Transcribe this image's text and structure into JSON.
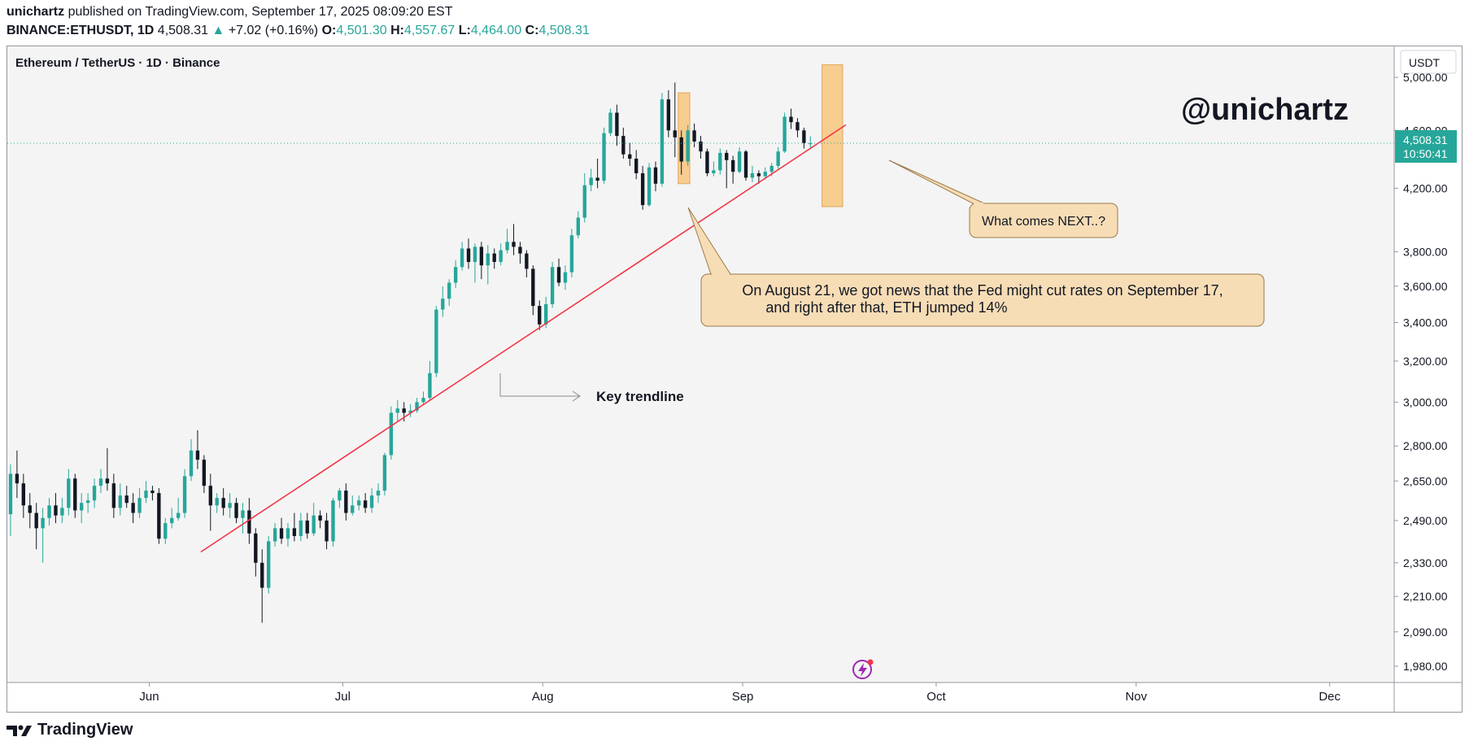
{
  "header": {
    "author": "unichartz",
    "published_text": "published on TradingView.com, September 17, 2025 08:09:20 EST",
    "symbol": "BINANCE:ETHUSDT, 1D",
    "last_price": "4,508.31",
    "change_arrow": "▲",
    "change": "+7.02 (+0.16%)",
    "o_label": "O:",
    "o_value": "4,501.30",
    "h_label": "H:",
    "h_value": "4,557.67",
    "l_label": "L:",
    "l_value": "4,464.00",
    "c_label": "C:",
    "c_value": "4,508.31"
  },
  "footer": {
    "brand": "TradingView"
  },
  "colors": {
    "up": "#26a69a",
    "down": "#131722",
    "trendline": "#f23645",
    "highlight": "#f7c57d",
    "callout_bg": "#f7ddb6",
    "callout_border": "#9b7a4a",
    "price_tag": "#26a69a"
  },
  "chart_data": {
    "type": "candlestick",
    "title": "Ethereum / TetherUS · 1D · Binance",
    "currency_label": "USDT",
    "watermark": "@unichartz",
    "y_scale": "log",
    "ylim": [
      1930,
      5250
    ],
    "y_ticks": [
      5000,
      4600,
      4200,
      3800,
      3600,
      3400,
      3200,
      3000,
      2800,
      2650,
      2490,
      2330,
      2210,
      2090,
      1980
    ],
    "y_tick_labels": [
      "5,000.00",
      "4,600.00",
      "4,200.00",
      "3,800.00",
      "3,600.00",
      "3,400.00",
      "3,200.00",
      "3,000.00",
      "2,800.00",
      "2,650.00",
      "2,490.00",
      "2,330.00",
      "2,210.00",
      "2,090.00",
      "1,980.00"
    ],
    "x_start_date": "2025-05-10",
    "x_range_days": 215,
    "x_tick_days": [
      22,
      52,
      83,
      114,
      144,
      175,
      205
    ],
    "x_tick_labels": [
      "Jun",
      "Jul",
      "Aug",
      "Sep",
      "Oct",
      "Nov",
      "Dec"
    ],
    "current_price": 4508.31,
    "current_price_label": "4,508.31",
    "countdown": "10:50:41",
    "candles": [
      [
        2515,
        2680,
        2720,
        2430
      ],
      [
        2680,
        2640,
        2780,
        2580
      ],
      [
        2640,
        2550,
        2680,
        2500
      ],
      [
        2550,
        2520,
        2600,
        2460
      ],
      [
        2520,
        2460,
        2560,
        2380
      ],
      [
        2460,
        2500,
        2540,
        2330
      ],
      [
        2500,
        2550,
        2580,
        2470
      ],
      [
        2550,
        2510,
        2600,
        2480
      ],
      [
        2510,
        2540,
        2580,
        2480
      ],
      [
        2540,
        2660,
        2700,
        2510
      ],
      [
        2660,
        2530,
        2680,
        2500
      ],
      [
        2530,
        2560,
        2600,
        2480
      ],
      [
        2560,
        2570,
        2600,
        2520
      ],
      [
        2570,
        2630,
        2660,
        2540
      ],
      [
        2630,
        2660,
        2700,
        2600
      ],
      [
        2660,
        2640,
        2790,
        2610
      ],
      [
        2640,
        2540,
        2680,
        2500
      ],
      [
        2540,
        2590,
        2640,
        2510
      ],
      [
        2590,
        2560,
        2630,
        2540
      ],
      [
        2560,
        2520,
        2600,
        2480
      ],
      [
        2520,
        2580,
        2620,
        2500
      ],
      [
        2580,
        2610,
        2650,
        2560
      ],
      [
        2610,
        2600,
        2630,
        2570
      ],
      [
        2600,
        2420,
        2620,
        2400
      ],
      [
        2420,
        2480,
        2500,
        2400
      ],
      [
        2480,
        2500,
        2540,
        2460
      ],
      [
        2500,
        2520,
        2580,
        2490
      ],
      [
        2520,
        2670,
        2700,
        2500
      ],
      [
        2670,
        2780,
        2830,
        2650
      ],
      [
        2780,
        2740,
        2870,
        2700
      ],
      [
        2740,
        2630,
        2760,
        2600
      ],
      [
        2630,
        2550,
        2680,
        2450
      ],
      [
        2550,
        2580,
        2600,
        2520
      ],
      [
        2580,
        2540,
        2620,
        2510
      ],
      [
        2540,
        2560,
        2600,
        2500
      ],
      [
        2560,
        2500,
        2580,
        2480
      ],
      [
        2500,
        2530,
        2560,
        2440
      ],
      [
        2530,
        2440,
        2580,
        2400
      ],
      [
        2440,
        2330,
        2460,
        2280
      ],
      [
        2330,
        2240,
        2380,
        2120
      ],
      [
        2240,
        2410,
        2430,
        2220
      ],
      [
        2410,
        2460,
        2480,
        2390
      ],
      [
        2460,
        2420,
        2500,
        2400
      ],
      [
        2420,
        2460,
        2480,
        2390
      ],
      [
        2460,
        2430,
        2520,
        2410
      ],
      [
        2430,
        2490,
        2520,
        2410
      ],
      [
        2490,
        2440,
        2520,
        2420
      ],
      [
        2440,
        2510,
        2560,
        2430
      ],
      [
        2510,
        2490,
        2530,
        2460
      ],
      [
        2490,
        2410,
        2520,
        2380
      ],
      [
        2410,
        2570,
        2580,
        2390
      ],
      [
        2570,
        2610,
        2620,
        2540
      ],
      [
        2610,
        2520,
        2640,
        2490
      ],
      [
        2520,
        2550,
        2590,
        2510
      ],
      [
        2550,
        2570,
        2590,
        2530
      ],
      [
        2570,
        2540,
        2600,
        2520
      ],
      [
        2540,
        2590,
        2620,
        2520
      ],
      [
        2590,
        2610,
        2640,
        2560
      ],
      [
        2610,
        2760,
        2770,
        2590
      ],
      [
        2760,
        2950,
        2980,
        2740
      ],
      [
        2950,
        2970,
        3010,
        2910
      ],
      [
        2970,
        2950,
        3000,
        2910
      ],
      [
        2950,
        2960,
        2990,
        2930
      ],
      [
        2960,
        3000,
        3020,
        2950
      ],
      [
        3000,
        3020,
        3050,
        2990
      ],
      [
        3020,
        3140,
        3200,
        3010
      ],
      [
        3140,
        3470,
        3490,
        3120
      ],
      [
        3470,
        3530,
        3600,
        3430
      ],
      [
        3530,
        3620,
        3640,
        3490
      ],
      [
        3620,
        3710,
        3750,
        3590
      ],
      [
        3710,
        3820,
        3860,
        3690
      ],
      [
        3820,
        3740,
        3880,
        3700
      ],
      [
        3740,
        3830,
        3850,
        3620
      ],
      [
        3830,
        3720,
        3860,
        3640
      ],
      [
        3720,
        3790,
        3840,
        3610
      ],
      [
        3790,
        3740,
        3820,
        3700
      ],
      [
        3740,
        3810,
        3850,
        3720
      ],
      [
        3810,
        3860,
        3940,
        3790
      ],
      [
        3860,
        3830,
        3970,
        3780
      ],
      [
        3830,
        3790,
        3860,
        3730
      ],
      [
        3790,
        3700,
        3810,
        3650
      ],
      [
        3700,
        3490,
        3720,
        3440
      ],
      [
        3490,
        3390,
        3520,
        3360
      ],
      [
        3390,
        3500,
        3540,
        3370
      ],
      [
        3500,
        3710,
        3740,
        3480
      ],
      [
        3710,
        3620,
        3760,
        3600
      ],
      [
        3620,
        3680,
        3720,
        3580
      ],
      [
        3680,
        3900,
        3940,
        3650
      ],
      [
        3900,
        4010,
        4050,
        3880
      ],
      [
        4010,
        4220,
        4300,
        3980
      ],
      [
        4220,
        4270,
        4330,
        4180
      ],
      [
        4270,
        4250,
        4400,
        4200
      ],
      [
        4250,
        4580,
        4620,
        4230
      ],
      [
        4580,
        4730,
        4760,
        4560
      ],
      [
        4730,
        4560,
        4790,
        4490
      ],
      [
        4560,
        4430,
        4620,
        4400
      ],
      [
        4430,
        4400,
        4510,
        4350
      ],
      [
        4400,
        4300,
        4460,
        4260
      ],
      [
        4300,
        4090,
        4350,
        4060
      ],
      [
        4090,
        4340,
        4370,
        4080
      ],
      [
        4340,
        4230,
        4380,
        4180
      ],
      [
        4230,
        4830,
        4880,
        4210
      ],
      [
        4830,
        4600,
        4900,
        4550
      ],
      [
        4600,
        4550,
        4960,
        4410
      ],
      [
        4550,
        4380,
        4600,
        4290
      ],
      [
        4380,
        4600,
        4640,
        4350
      ],
      [
        4600,
        4520,
        4650,
        4480
      ],
      [
        4520,
        4450,
        4560,
        4400
      ],
      [
        4450,
        4300,
        4470,
        4280
      ],
      [
        4300,
        4320,
        4380,
        4280
      ],
      [
        4320,
        4440,
        4470,
        4290
      ],
      [
        4440,
        4390,
        4460,
        4200
      ],
      [
        4390,
        4310,
        4420,
        4230
      ],
      [
        4310,
        4450,
        4480,
        4300
      ],
      [
        4450,
        4270,
        4460,
        4250
      ],
      [
        4270,
        4300,
        4350,
        4240
      ],
      [
        4300,
        4280,
        4320,
        4230
      ],
      [
        4280,
        4310,
        4340,
        4260
      ],
      [
        4310,
        4350,
        4370,
        4280
      ],
      [
        4350,
        4450,
        4480,
        4330
      ],
      [
        4450,
        4700,
        4730,
        4440
      ],
      [
        4700,
        4660,
        4760,
        4610
      ],
      [
        4660,
        4600,
        4690,
        4550
      ],
      [
        4600,
        4510,
        4620,
        4470
      ],
      [
        4501.3,
        4508.31,
        4557.67,
        4464.0
      ]
    ],
    "trendline": {
      "label": "Key trendline",
      "start_day": 30,
      "start_price": 2370,
      "end_day": 130,
      "end_price": 4640
    },
    "highlights": [
      {
        "start_day": 104,
        "end_day": 105.8,
        "top": 4880,
        "bottom": 4230
      },
      {
        "start_day": 126.3,
        "end_day": 129.5,
        "top": 5100,
        "bottom": 4080
      }
    ],
    "annotations": {
      "news_callout": {
        "line1": "On August 21, we got news that the Fed might cut rates on September 17,",
        "line2": "and right after that, ETH jumped 14%"
      },
      "question_callout": "What comes NEXT..?"
    }
  }
}
